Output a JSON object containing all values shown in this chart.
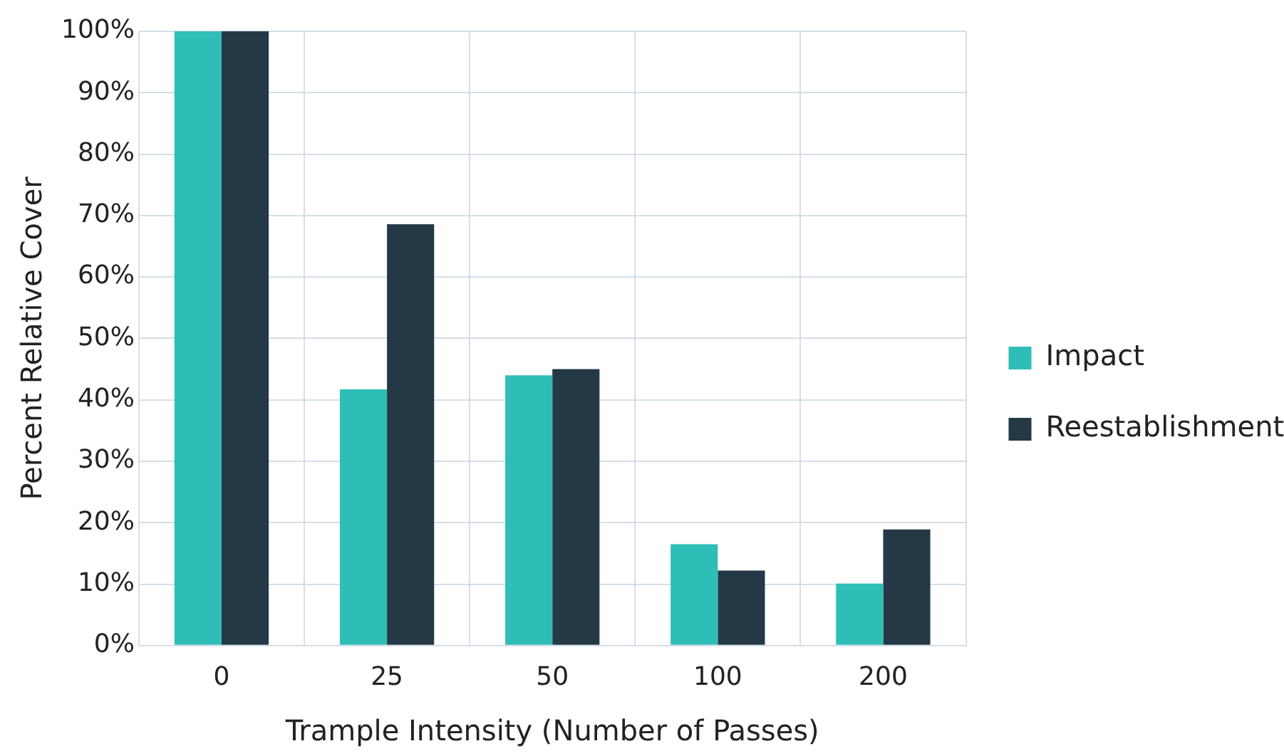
{
  "chart_data": {
    "type": "bar",
    "xlabel": "Trample Intensity (Number of Passes)",
    "ylabel": "Percent Relative Cover",
    "categories": [
      "0",
      "25",
      "50",
      "100",
      "200"
    ],
    "series": [
      {
        "name": "Impact",
        "color": "#2ebdb7",
        "values": [
          100,
          41.7,
          44,
          16.5,
          10.1
        ]
      },
      {
        "name": "Reestablishment",
        "color": "#243845",
        "values": [
          100,
          68.6,
          45,
          12.2,
          18.9
        ]
      }
    ],
    "ylim": [
      0,
      100
    ],
    "yticks": [
      {
        "value": 0,
        "label": "0%"
      },
      {
        "value": 10,
        "label": "10%"
      },
      {
        "value": 20,
        "label": "20%"
      },
      {
        "value": 30,
        "label": "30%"
      },
      {
        "value": 40,
        "label": "40%"
      },
      {
        "value": 50,
        "label": "50%"
      },
      {
        "value": 60,
        "label": "60%"
      },
      {
        "value": 70,
        "label": "70%"
      },
      {
        "value": 80,
        "label": "80%"
      },
      {
        "value": 90,
        "label": "90%"
      },
      {
        "value": 100,
        "label": "100%"
      }
    ],
    "grid": true,
    "legend": "right"
  }
}
